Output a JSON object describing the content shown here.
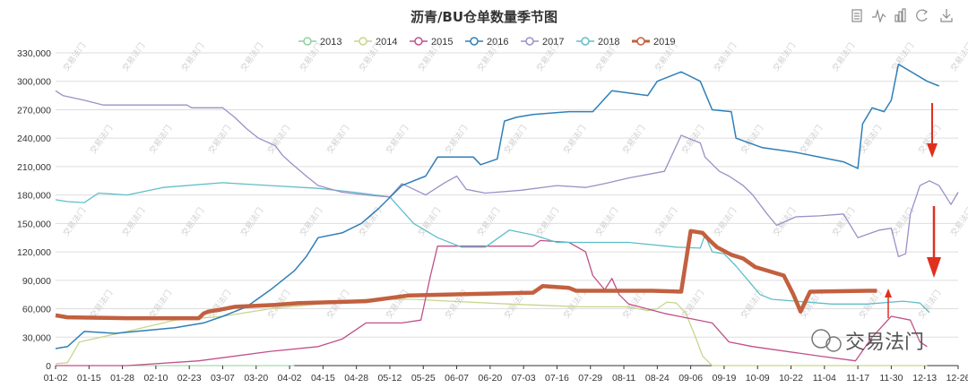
{
  "chart_data": {
    "type": "line",
    "title": "沥青/BU仓单数量季节图",
    "ylim": [
      0,
      330000
    ],
    "y_ticks": [
      "0",
      "30,000",
      "60,000",
      "90,000",
      "120,000",
      "150,000",
      "180,000",
      "210,000",
      "240,000",
      "270,000",
      "300,000",
      "330,000"
    ],
    "x_ticks": [
      "01-02",
      "01-15",
      "01-28",
      "02-10",
      "02-23",
      "03-07",
      "03-20",
      "04-02",
      "04-15",
      "04-28",
      "05-12",
      "05-25",
      "06-07",
      "06-20",
      "07-03",
      "07-16",
      "07-29",
      "08-11",
      "08-24",
      "09-06",
      "09-19",
      "10-09",
      "10-22",
      "11-04",
      "11-17",
      "11-30",
      "12-13",
      "12-26"
    ],
    "legend_position": "top-center",
    "grid": true,
    "series": [
      {
        "name": "2013",
        "color": "#8fd19e",
        "width": 1,
        "points": [
          [
            0,
            0
          ],
          [
            100,
            0
          ]
        ]
      },
      {
        "name": "2014",
        "color": "#c6d68d",
        "width": 1.3,
        "points": [
          [
            0,
            2000
          ],
          [
            5,
            3000
          ],
          [
            10,
            25000
          ],
          [
            30,
            36000
          ],
          [
            50,
            48000
          ],
          [
            70,
            52000
          ],
          [
            90,
            60000
          ],
          [
            110,
            65000
          ],
          [
            120,
            68000
          ],
          [
            130,
            70000
          ],
          [
            150,
            70000
          ],
          [
            165,
            68000
          ],
          [
            190,
            65000
          ],
          [
            220,
            62000
          ],
          [
            240,
            62000
          ],
          [
            248,
            58000
          ],
          [
            252,
            60000
          ],
          [
            256,
            67000
          ],
          [
            260,
            66000
          ],
          [
            264,
            55000
          ],
          [
            268,
            30000
          ],
          [
            271,
            10000
          ],
          [
            275,
            0
          ],
          [
            365,
            0
          ]
        ]
      },
      {
        "name": "2015",
        "color": "#c0508a",
        "width": 1.3,
        "points": [
          [
            0,
            0
          ],
          [
            30,
            0
          ],
          [
            60,
            5000
          ],
          [
            90,
            15000
          ],
          [
            110,
            20000
          ],
          [
            120,
            28000
          ],
          [
            130,
            45000
          ],
          [
            145,
            45000
          ],
          [
            153,
            48000
          ],
          [
            157,
            95000
          ],
          [
            160,
            126000
          ],
          [
            200,
            126000
          ],
          [
            203,
            132000
          ],
          [
            215,
            130000
          ],
          [
            222,
            120000
          ],
          [
            225,
            95000
          ],
          [
            230,
            80000
          ],
          [
            233,
            92000
          ],
          [
            236,
            75000
          ],
          [
            240,
            65000
          ],
          [
            255,
            55000
          ],
          [
            265,
            50000
          ],
          [
            275,
            45000
          ],
          [
            282,
            25000
          ],
          [
            292,
            20000
          ],
          [
            320,
            10000
          ],
          [
            335,
            5000
          ],
          [
            342,
            30000
          ],
          [
            350,
            52000
          ],
          [
            358,
            48000
          ],
          [
            362,
            25000
          ],
          [
            365,
            20000
          ]
        ]
      },
      {
        "name": "2016",
        "color": "#2f7fb8",
        "width": 1.5,
        "points": [
          [
            0,
            18000
          ],
          [
            5,
            20000
          ],
          [
            12,
            36000
          ],
          [
            25,
            34000
          ],
          [
            50,
            40000
          ],
          [
            62,
            45000
          ],
          [
            70,
            52000
          ],
          [
            80,
            62000
          ],
          [
            90,
            80000
          ],
          [
            100,
            100000
          ],
          [
            105,
            115000
          ],
          [
            110,
            135000
          ],
          [
            120,
            140000
          ],
          [
            128,
            150000
          ],
          [
            135,
            165000
          ],
          [
            145,
            190000
          ],
          [
            155,
            200000
          ],
          [
            160,
            220000
          ],
          [
            175,
            220000
          ],
          [
            178,
            212000
          ],
          [
            185,
            218000
          ],
          [
            188,
            258000
          ],
          [
            193,
            262000
          ],
          [
            200,
            265000
          ],
          [
            215,
            268000
          ],
          [
            225,
            268000
          ],
          [
            233,
            290000
          ],
          [
            248,
            285000
          ],
          [
            252,
            300000
          ],
          [
            262,
            310000
          ],
          [
            270,
            300000
          ],
          [
            272,
            288000
          ],
          [
            275,
            270000
          ],
          [
            283,
            268000
          ],
          [
            285,
            240000
          ],
          [
            296,
            230000
          ],
          [
            310,
            225000
          ],
          [
            330,
            215000
          ],
          [
            336,
            208000
          ],
          [
            338,
            255000
          ],
          [
            342,
            272000
          ],
          [
            347,
            268000
          ],
          [
            350,
            280000
          ],
          [
            353,
            318000
          ],
          [
            365,
            300000
          ],
          [
            370,
            295000
          ]
        ]
      },
      {
        "name": "2017",
        "color": "#9d8fc6",
        "width": 1.3,
        "points": [
          [
            0,
            290000
          ],
          [
            3,
            285000
          ],
          [
            12,
            280000
          ],
          [
            20,
            275000
          ],
          [
            40,
            275000
          ],
          [
            55,
            275000
          ],
          [
            57,
            272000
          ],
          [
            70,
            272000
          ],
          [
            75,
            262000
          ],
          [
            80,
            250000
          ],
          [
            85,
            240000
          ],
          [
            92,
            232000
          ],
          [
            95,
            222000
          ],
          [
            98,
            215000
          ],
          [
            105,
            200000
          ],
          [
            110,
            190000
          ],
          [
            120,
            183000
          ],
          [
            130,
            180000
          ],
          [
            140,
            178000
          ],
          [
            145,
            192000
          ],
          [
            155,
            180000
          ],
          [
            163,
            193000
          ],
          [
            168,
            200000
          ],
          [
            172,
            186000
          ],
          [
            180,
            182000
          ],
          [
            195,
            185000
          ],
          [
            210,
            190000
          ],
          [
            222,
            188000
          ],
          [
            230,
            192000
          ],
          [
            240,
            198000
          ],
          [
            255,
            205000
          ],
          [
            262,
            243000
          ],
          [
            270,
            235000
          ],
          [
            272,
            220000
          ],
          [
            278,
            205000
          ],
          [
            282,
            200000
          ],
          [
            288,
            190000
          ],
          [
            292,
            180000
          ],
          [
            298,
            160000
          ],
          [
            302,
            148000
          ],
          [
            310,
            157000
          ],
          [
            320,
            158000
          ],
          [
            330,
            160000
          ],
          [
            336,
            135000
          ],
          [
            345,
            143000
          ],
          [
            350,
            145000
          ],
          [
            353,
            115000
          ],
          [
            356,
            118000
          ],
          [
            358,
            160000
          ],
          [
            362,
            190000
          ],
          [
            366,
            195000
          ],
          [
            370,
            190000
          ],
          [
            375,
            170000
          ],
          [
            378,
            183000
          ]
        ]
      },
      {
        "name": "2018",
        "color": "#5fbec9",
        "width": 1.3,
        "points": [
          [
            0,
            175000
          ],
          [
            5,
            173000
          ],
          [
            12,
            172000
          ],
          [
            18,
            182000
          ],
          [
            30,
            180000
          ],
          [
            45,
            188000
          ],
          [
            70,
            193000
          ],
          [
            90,
            190000
          ],
          [
            110,
            187000
          ],
          [
            125,
            183000
          ],
          [
            140,
            178000
          ],
          [
            150,
            150000
          ],
          [
            160,
            135000
          ],
          [
            170,
            125000
          ],
          [
            180,
            125000
          ],
          [
            190,
            143000
          ],
          [
            200,
            138000
          ],
          [
            210,
            130000
          ],
          [
            225,
            130000
          ],
          [
            240,
            130000
          ],
          [
            260,
            125000
          ],
          [
            270,
            124000
          ],
          [
            272,
            138000
          ],
          [
            275,
            120000
          ],
          [
            280,
            118000
          ],
          [
            285,
            105000
          ],
          [
            290,
            90000
          ],
          [
            295,
            75000
          ],
          [
            300,
            70000
          ],
          [
            310,
            68000
          ],
          [
            325,
            65000
          ],
          [
            340,
            65000
          ],
          [
            355,
            68000
          ],
          [
            362,
            66000
          ],
          [
            366,
            56000
          ]
        ]
      },
      {
        "name": "2019",
        "color": "#c2603f",
        "width": 4.5,
        "points": [
          [
            0,
            53000
          ],
          [
            5,
            51000
          ],
          [
            30,
            50000
          ],
          [
            60,
            50000
          ],
          [
            62,
            55000
          ],
          [
            64,
            57000
          ],
          [
            69,
            59000
          ],
          [
            75,
            62000
          ],
          [
            92,
            64000
          ],
          [
            102,
            66000
          ],
          [
            130,
            68000
          ],
          [
            148,
            74000
          ],
          [
            200,
            77000
          ],
          [
            204,
            84000
          ],
          [
            215,
            82000
          ],
          [
            218,
            79000
          ],
          [
            250,
            79000
          ],
          [
            262,
            78000
          ],
          [
            266,
            142000
          ],
          [
            271,
            140000
          ],
          [
            274,
            132000
          ],
          [
            277,
            125000
          ],
          [
            283,
            117000
          ],
          [
            288,
            113000
          ],
          [
            293,
            104000
          ],
          [
            305,
            95000
          ],
          [
            309,
            75000
          ],
          [
            312,
            57000
          ],
          [
            316,
            78000
          ],
          [
            340,
            79000
          ],
          [
            344,
            79000
          ]
        ]
      }
    ]
  },
  "watermark_text": "交易法门",
  "logo": {
    "text": "交易法门"
  }
}
